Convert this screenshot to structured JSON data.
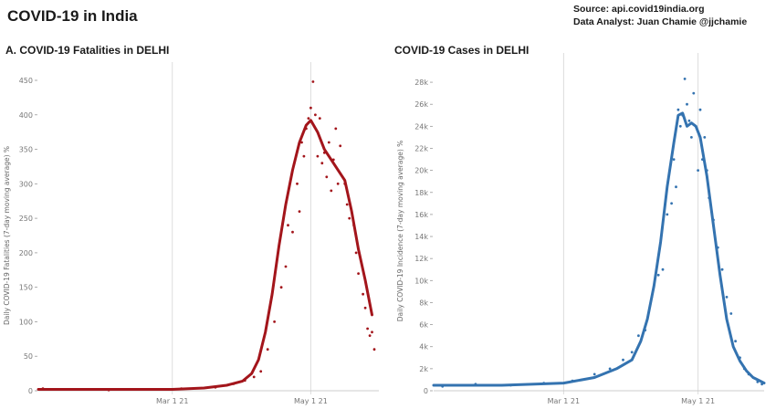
{
  "header": {
    "title": "COVID-19 in India",
    "source": "Source: api.covid19india.org",
    "analyst": "Data Analyst:  Juan Chamie @jjchamie"
  },
  "chart_data": [
    {
      "type": "scatter",
      "title": "A. COVID-19 Fatalities in DELHI",
      "ylabel": "Daily COVID-19 Fatalities (7-day moving average) %",
      "xlabel": "",
      "x_ticks": [
        "Mar 1 21",
        "May 1 21"
      ],
      "y_ticks": [
        "0",
        "50",
        "100",
        "150",
        "200",
        "250",
        "300",
        "350",
        "400",
        "450"
      ],
      "ylim": [
        0,
        450
      ],
      "xlim": [
        "2021-01-01",
        "2021-05-31"
      ],
      "grid": "vertical",
      "color": "#a3151b",
      "series": [
        {
          "kind": "line",
          "x": [
            "2021-01-01",
            "2021-02-01",
            "2021-03-01",
            "2021-03-15",
            "2021-03-25",
            "2021-04-01",
            "2021-04-05",
            "2021-04-08",
            "2021-04-11",
            "2021-04-14",
            "2021-04-17",
            "2021-04-20",
            "2021-04-23",
            "2021-04-26",
            "2021-04-29",
            "2021-05-01",
            "2021-05-04",
            "2021-05-07",
            "2021-05-10",
            "2021-05-13",
            "2021-05-16",
            "2021-05-19",
            "2021-05-22",
            "2021-05-25",
            "2021-05-28"
          ],
          "y": [
            2,
            2,
            2,
            4,
            8,
            14,
            25,
            45,
            85,
            140,
            210,
            270,
            320,
            360,
            385,
            392,
            375,
            350,
            335,
            320,
            305,
            260,
            205,
            160,
            110
          ]
        },
        {
          "kind": "points",
          "x": [
            "2021-01-03",
            "2021-01-15",
            "2021-02-01",
            "2021-02-15",
            "2021-03-05",
            "2021-03-20",
            "2021-03-28",
            "2021-04-02",
            "2021-04-06",
            "2021-04-09",
            "2021-04-12",
            "2021-04-15",
            "2021-04-18",
            "2021-04-20",
            "2021-04-21",
            "2021-04-23",
            "2021-04-25",
            "2021-04-26",
            "2021-04-27",
            "2021-04-28",
            "2021-04-29",
            "2021-04-30",
            "2021-05-01",
            "2021-05-02",
            "2021-05-03",
            "2021-05-04",
            "2021-05-05",
            "2021-05-06",
            "2021-05-07",
            "2021-05-08",
            "2021-05-09",
            "2021-05-10",
            "2021-05-11",
            "2021-05-12",
            "2021-05-13",
            "2021-05-14",
            "2021-05-16",
            "2021-05-17",
            "2021-05-18",
            "2021-05-20",
            "2021-05-21",
            "2021-05-22",
            "2021-05-24",
            "2021-05-25",
            "2021-05-26",
            "2021-05-27",
            "2021-05-28",
            "2021-05-29"
          ],
          "y": [
            3,
            2,
            1,
            2,
            3,
            5,
            10,
            15,
            20,
            28,
            60,
            100,
            150,
            180,
            240,
            230,
            300,
            260,
            360,
            340,
            380,
            395,
            410,
            448,
            400,
            340,
            395,
            330,
            345,
            310,
            360,
            290,
            335,
            380,
            300,
            355,
            300,
            270,
            250,
            240,
            200,
            170,
            140,
            120,
            90,
            80,
            85,
            60
          ]
        }
      ]
    },
    {
      "type": "scatter",
      "title": "COVID-19 Cases in DELHI",
      "ylabel": "Daily COVID-19 Incidence (7-day moving average) %",
      "xlabel": "",
      "x_ticks": [
        "Mar 1 21",
        "May 1 21"
      ],
      "y_ticks": [
        "0",
        "2k",
        "4k",
        "6k",
        "8k",
        "10k",
        "12k",
        "14k",
        "16k",
        "18k",
        "20k",
        "22k",
        "24k",
        "26k",
        "28k"
      ],
      "ylim": [
        0,
        29000
      ],
      "xlim": [
        "2021-01-01",
        "2021-05-31"
      ],
      "grid": "vertical",
      "color": "#3473b0",
      "series": [
        {
          "kind": "line",
          "x": [
            "2021-01-01",
            "2021-02-01",
            "2021-03-01",
            "2021-03-15",
            "2021-03-25",
            "2021-04-01",
            "2021-04-05",
            "2021-04-08",
            "2021-04-11",
            "2021-04-14",
            "2021-04-17",
            "2021-04-20",
            "2021-04-22",
            "2021-04-24",
            "2021-04-26",
            "2021-04-28",
            "2021-04-30",
            "2021-05-02",
            "2021-05-05",
            "2021-05-08",
            "2021-05-11",
            "2021-05-14",
            "2021-05-17",
            "2021-05-20",
            "2021-05-23",
            "2021-05-26",
            "2021-05-29",
            "2021-05-31"
          ],
          "y": [
            500,
            500,
            700,
            1200,
            2000,
            2800,
            4500,
            6500,
            9500,
            13500,
            18500,
            22500,
            25000,
            25200,
            24000,
            24300,
            24000,
            23000,
            19500,
            15000,
            10500,
            6500,
            4000,
            2700,
            1800,
            1200,
            900,
            700
          ]
        },
        {
          "kind": "points",
          "x": [
            "2021-01-05",
            "2021-01-20",
            "2021-02-05",
            "2021-02-20",
            "2021-03-05",
            "2021-03-15",
            "2021-03-22",
            "2021-03-28",
            "2021-04-01",
            "2021-04-04",
            "2021-04-07",
            "2021-04-10",
            "2021-04-13",
            "2021-04-15",
            "2021-04-17",
            "2021-04-19",
            "2021-04-20",
            "2021-04-21",
            "2021-04-22",
            "2021-04-23",
            "2021-04-24",
            "2021-04-25",
            "2021-04-26",
            "2021-04-27",
            "2021-04-28",
            "2021-04-29",
            "2021-04-30",
            "2021-05-01",
            "2021-05-02",
            "2021-05-03",
            "2021-05-04",
            "2021-05-05",
            "2021-05-06",
            "2021-05-08",
            "2021-05-10",
            "2021-05-12",
            "2021-05-14",
            "2021-05-16",
            "2021-05-18",
            "2021-05-20",
            "2021-05-22",
            "2021-05-24",
            "2021-05-26",
            "2021-05-28",
            "2021-05-30"
          ],
          "y": [
            400,
            600,
            500,
            700,
            900,
            1500,
            2000,
            2800,
            3500,
            5000,
            5500,
            8500,
            10500,
            11000,
            16000,
            17000,
            21000,
            18500,
            25500,
            24000,
            25000,
            28300,
            26000,
            24500,
            23000,
            27000,
            24000,
            20000,
            25500,
            21000,
            23000,
            20000,
            17500,
            15500,
            13000,
            11000,
            8500,
            7000,
            4500,
            3000,
            2000,
            1500,
            1200,
            800,
            600
          ]
        }
      ]
    }
  ]
}
